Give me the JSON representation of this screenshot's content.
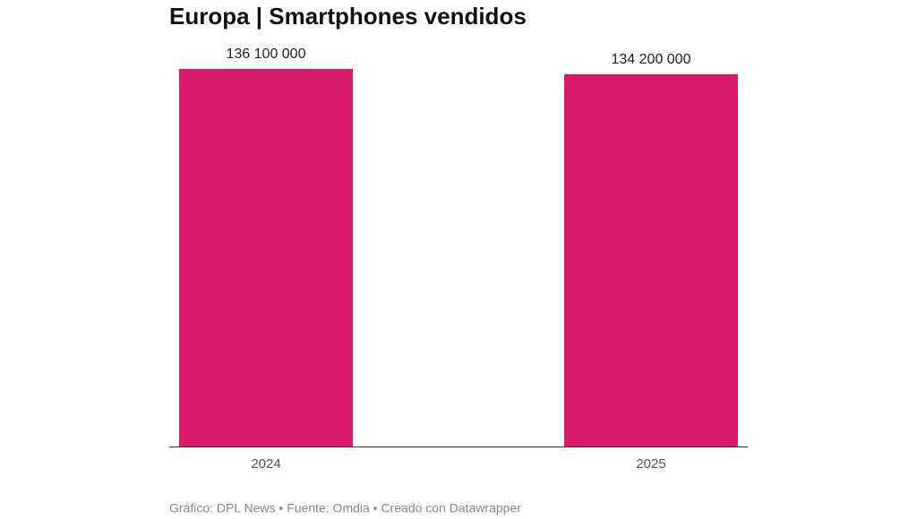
{
  "chart_data": {
    "type": "bar",
    "title": "Europa | Smartphones vendidos",
    "categories": [
      "2024",
      "2025"
    ],
    "values": [
      136100000,
      134200000
    ],
    "value_labels": [
      "136 100 000",
      "134 200 000"
    ],
    "color": "#d81a6a",
    "footer": "Gráfico: DPL News • Fuente: Omdia • Creado con Datawrapper"
  }
}
